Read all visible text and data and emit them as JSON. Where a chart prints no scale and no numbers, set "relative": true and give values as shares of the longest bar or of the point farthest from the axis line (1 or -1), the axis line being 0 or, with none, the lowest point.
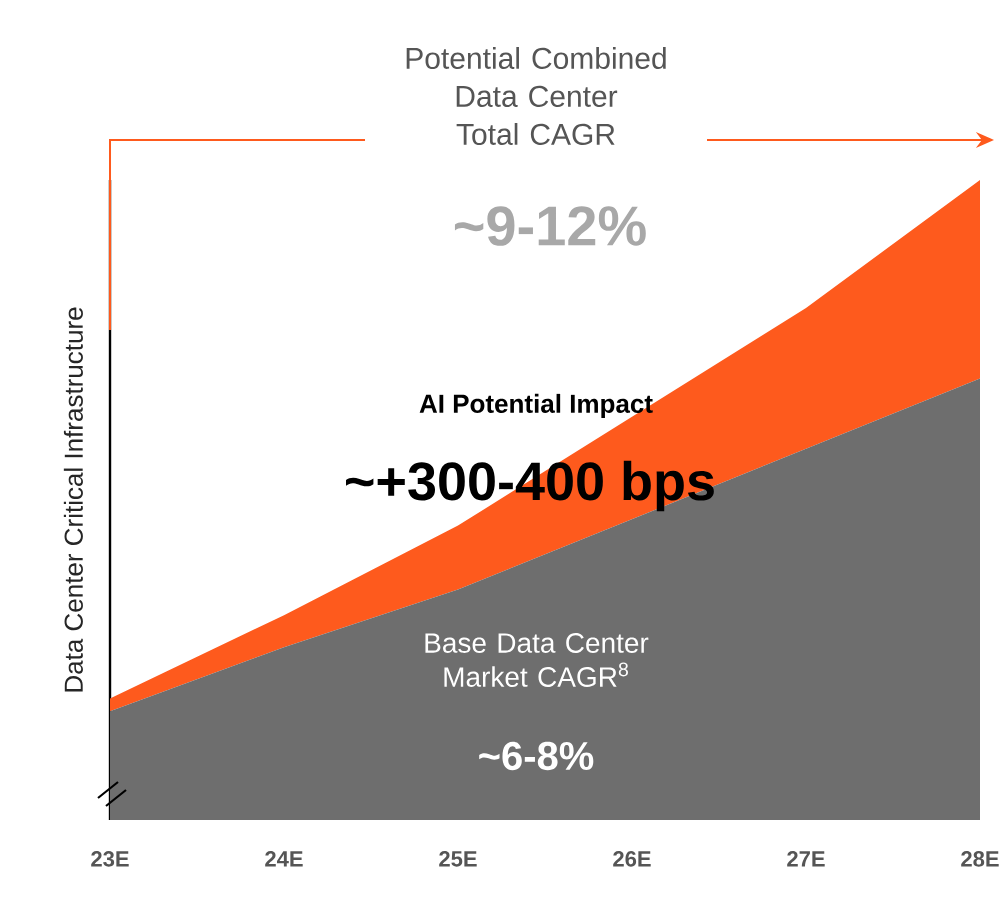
{
  "chart_data": {
    "type": "area",
    "title": "Potential Combined Data Center Total CAGR",
    "ylabel": "Data Center  Critical Infrastructure",
    "categories": [
      "23E",
      "24E",
      "25E",
      "26E",
      "27E",
      "28E"
    ],
    "stacked": true,
    "relative": true,
    "series": [
      {
        "color": "#6e6e6e",
        "values": [
          0.17,
          0.27,
          0.36,
          0.47,
          0.58,
          0.69
        ]
      },
      {
        "color": "#fe5a1d",
        "values": [
          0.02,
          0.05,
          0.1,
          0.16,
          0.22,
          0.31
        ]
      }
    ],
    "annotations": [
      "~9-12%",
      "AI Potential Impact",
      "~+300-400 bps",
      "Base Data Center Market CAGR$^{8}$",
      "~6-8%"
    ]
  }
}
